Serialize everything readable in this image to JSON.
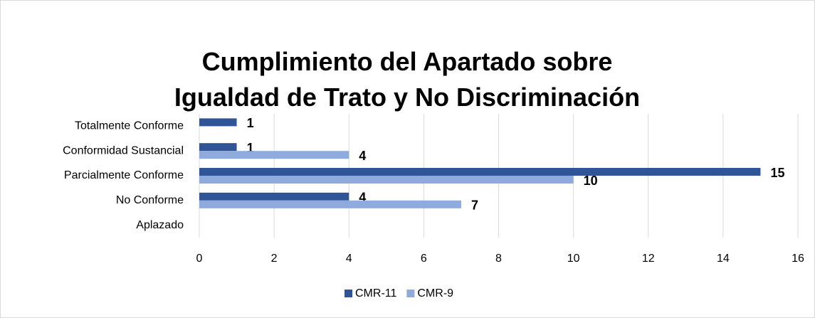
{
  "chart_data": {
    "type": "bar",
    "orientation": "horizontal",
    "title": "Cumplimiento del Apartado sobre Igualdad de Trato y No Discriminación",
    "categories": [
      "Totalmente Conforme",
      "Conformidad Sustancial",
      "Parcialmente Conforme",
      "No Conforme",
      "Aplazado"
    ],
    "series": [
      {
        "name": "CMR-11",
        "color": "#2f5597",
        "values": [
          1,
          1,
          15,
          4,
          null
        ]
      },
      {
        "name": "CMR-9",
        "color": "#8faadc",
        "values": [
          null,
          4,
          10,
          7,
          null
        ]
      }
    ],
    "xlim": [
      0,
      16
    ],
    "xticks": [
      0,
      2,
      4,
      6,
      8,
      10,
      12,
      14,
      16
    ],
    "grid": true,
    "legend": "bottom"
  }
}
